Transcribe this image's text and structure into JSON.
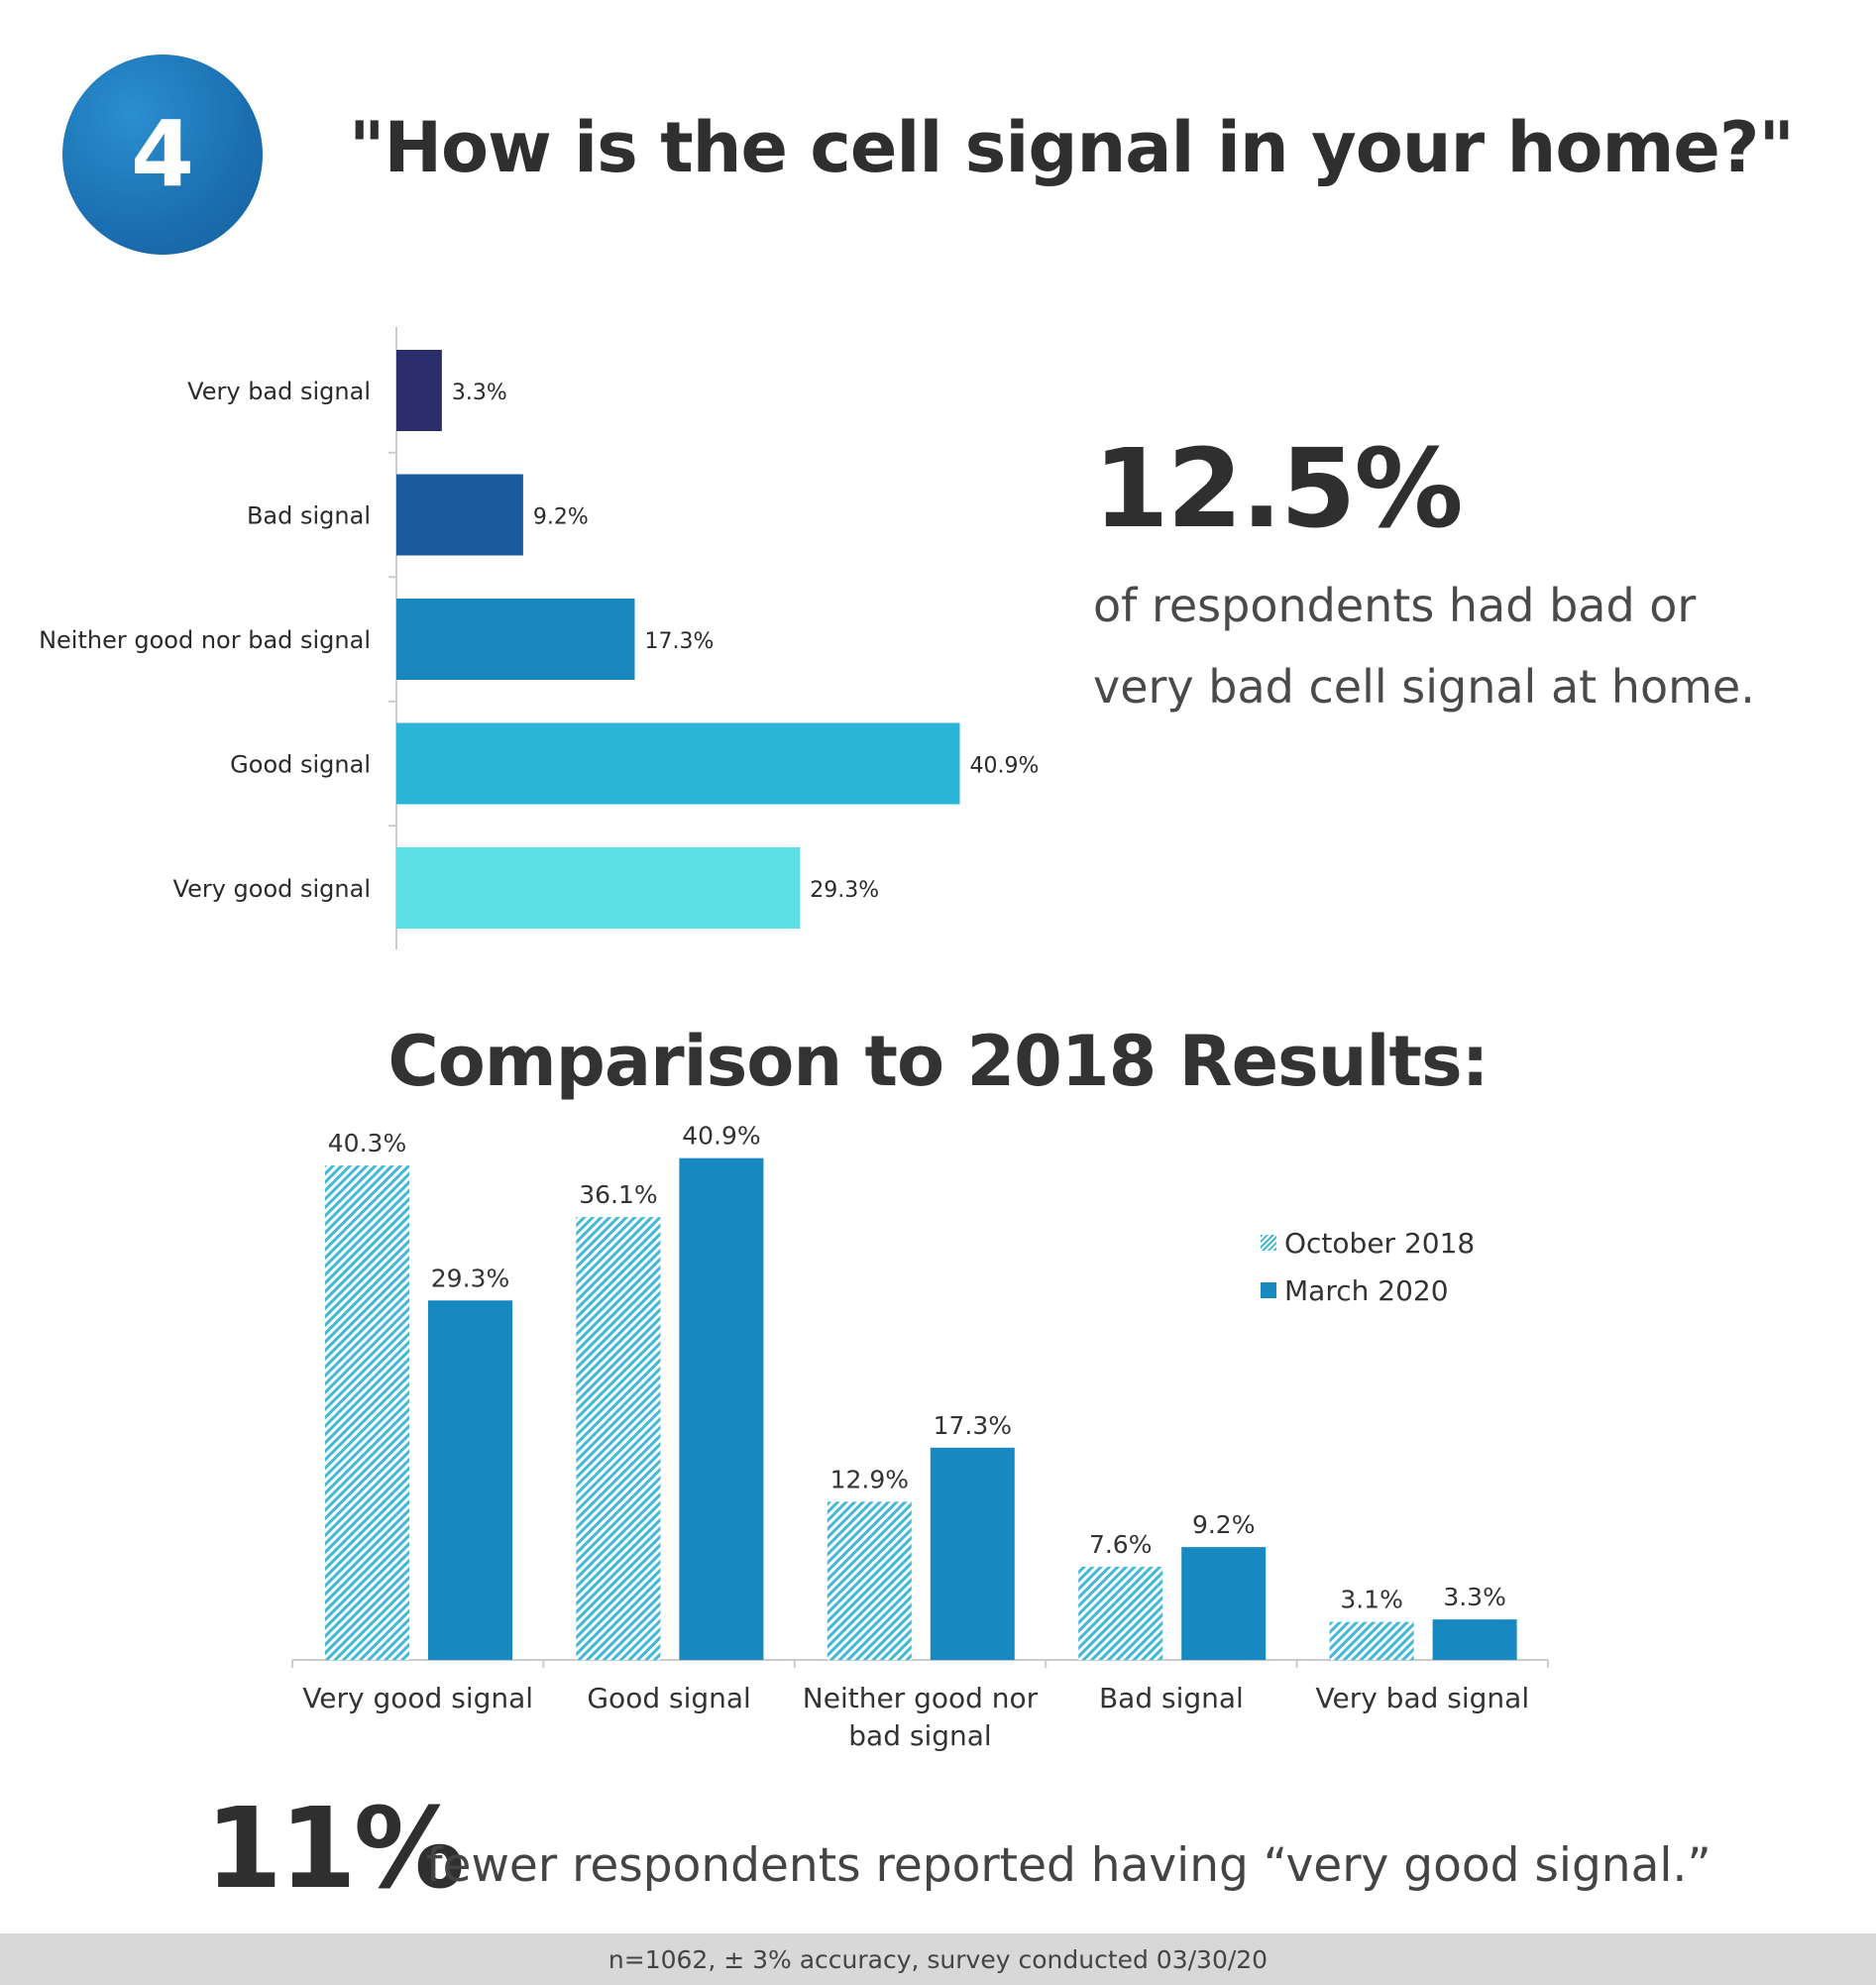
{
  "badge": {
    "number": "4"
  },
  "title": "\"How is the cell signal in your home?\"",
  "callout": {
    "value": "12.5%",
    "text": "of respondents had bad or very bad cell signal at home."
  },
  "comparison_title": "Comparison to 2018 Results:",
  "footer_callout": {
    "value": "11%",
    "text": "fewer respondents reported having “very good signal.”"
  },
  "footnote": "n=1062, ± 3% accuracy, survey conducted 03/30/20",
  "colors": {
    "very_bad": "#2b2d6b",
    "bad": "#1e5a9e",
    "neither": "#1787be",
    "good": "#2bb3d5",
    "very_good": "#5ce0e6",
    "oct2018_hatch": "#43b8d6",
    "mar2020": "#1788c0",
    "axis": "#cccccc"
  },
  "chart_data": [
    {
      "type": "bar",
      "orientation": "horizontal",
      "categories": [
        "Very bad signal",
        "Bad signal",
        "Neither good nor bad signal",
        "Good signal",
        "Very good signal"
      ],
      "values": [
        3.3,
        9.2,
        17.3,
        40.9,
        29.3
      ],
      "value_labels": [
        "3.3%",
        "9.2%",
        "17.3%",
        "40.9%",
        "29.3%"
      ],
      "xlim": [
        0,
        50
      ],
      "grid": false,
      "legend": "none"
    },
    {
      "type": "bar",
      "orientation": "vertical",
      "title": "Comparison to 2018 Results:",
      "categories": [
        "Very good signal",
        "Good signal",
        "Neither good nor bad signal",
        "Bad signal",
        "Very bad signal"
      ],
      "category_lines": [
        [
          "Very good signal"
        ],
        [
          "Good signal"
        ],
        [
          "Neither good nor",
          "bad signal"
        ],
        [
          "Bad signal"
        ],
        [
          "Very bad signal"
        ]
      ],
      "series": [
        {
          "name": "October 2018",
          "style": "hatched",
          "values": [
            40.3,
            36.1,
            12.9,
            7.6,
            3.1
          ],
          "labels": [
            "40.3%",
            "36.1%",
            "12.9%",
            "7.6%",
            "3.1%"
          ]
        },
        {
          "name": "March 2020",
          "style": "solid",
          "values": [
            29.3,
            40.9,
            17.3,
            9.2,
            3.3
          ],
          "labels": [
            "29.3%",
            "40.9%",
            "17.3%",
            "9.2%",
            "3.3%"
          ]
        }
      ],
      "ylim": [
        0,
        45
      ],
      "grid": false,
      "legend": "top-right"
    }
  ]
}
